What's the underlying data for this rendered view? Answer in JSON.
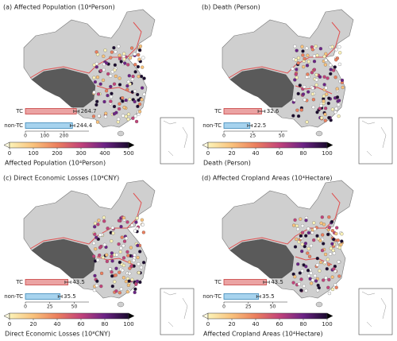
{
  "panels": [
    {
      "title": "(a) Affected Population (10⁴Person)",
      "bars": {
        "categories": [
          "TC",
          "non-TC"
        ],
        "values": [
          264.7,
          244.4
        ],
        "errors": [
          14,
          12
        ],
        "xlim": [
          0,
          330
        ],
        "xticks": [
          0,
          100,
          200
        ]
      },
      "colorbar": {
        "lim": [
          0,
          500
        ],
        "ticks": [
          0,
          100,
          200,
          300,
          400,
          500
        ],
        "label": "Affected Population (10⁴Person)"
      }
    },
    {
      "title": "(b) Death (Person)",
      "bars": {
        "categories": [
          "TC",
          "non-TC"
        ],
        "values": [
          32.6,
          22.5
        ],
        "errors": [
          3,
          2
        ],
        "xlim": [
          0,
          55
        ],
        "xticks": [
          0,
          25,
          50
        ]
      },
      "colorbar": {
        "lim": [
          0,
          100
        ],
        "ticks": [
          0,
          20,
          40,
          60,
          80,
          100
        ],
        "label": "Death (Person)"
      }
    },
    {
      "title": "(c) Direct Economic Losses (10⁸CNY)",
      "bars": {
        "categories": [
          "TC",
          "non-TC"
        ],
        "values": [
          43.5,
          35.5
        ],
        "errors": [
          3,
          2
        ],
        "xlim": [
          0,
          65
        ],
        "xticks": [
          0,
          25,
          50
        ]
      },
      "colorbar": {
        "lim": [
          0,
          100
        ],
        "ticks": [
          0,
          20,
          40,
          60,
          80,
          100
        ],
        "label": "Direct Economic Losses (10⁸CNY)"
      }
    },
    {
      "title": "(d) Affected Cropland Areas (10⁴Hectare)",
      "bars": {
        "categories": [
          "TC",
          "non-TC"
        ],
        "values": [
          43.5,
          35.5
        ],
        "errors": [
          3,
          2
        ],
        "xlim": [
          0,
          65
        ],
        "xticks": [
          0,
          25,
          50
        ]
      },
      "colorbar": {
        "lim": [
          0,
          100
        ],
        "ticks": [
          0,
          20,
          40,
          60,
          80,
          100
        ],
        "label": "Affected Cropland Areas (10⁴Hectare)"
      }
    }
  ]
}
